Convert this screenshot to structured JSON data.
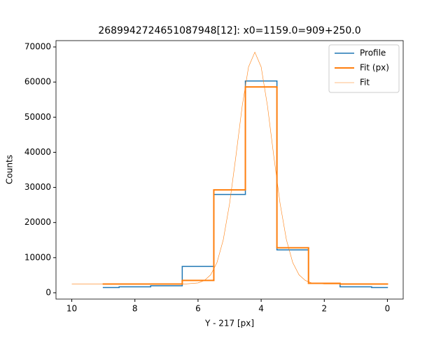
{
  "chart_data": {
    "type": "line",
    "title": "2689942724651087948[12]: x0=1159.0=909+250.0",
    "x_label": "Y - 217 [px]",
    "y_label": "Counts",
    "xlim": [
      10.5,
      -0.5
    ],
    "xticks": [
      10,
      8,
      6,
      4,
      2,
      0
    ],
    "ylim": [
      -1800,
      71800
    ],
    "yticks": [
      0,
      10000,
      20000,
      30000,
      40000,
      50000,
      60000,
      70000
    ],
    "legend": "upper right",
    "series": [
      {
        "name": "Profile",
        "color": "#1f77b4",
        "drawstyle": "steps-mid",
        "linewidth": 1.5,
        "x": [
          0,
          1,
          2,
          3,
          4,
          5,
          6,
          7,
          8,
          9
        ],
        "values": [
          1500,
          1700,
          2700,
          12200,
          60300,
          28000,
          7500,
          2000,
          1700,
          1500
        ]
      },
      {
        "name": "Fit (px)",
        "color": "#ff7f0e",
        "drawstyle": "steps-mid",
        "linewidth": 2,
        "x": [
          0,
          1,
          2,
          3,
          4,
          5,
          6,
          7,
          8,
          9
        ],
        "values": [
          2500,
          2500,
          2700,
          12800,
          58600,
          29300,
          3500,
          2500,
          2500,
          2500
        ]
      },
      {
        "name": "Fit",
        "color": "#ff7f0e",
        "drawstyle": "default",
        "linewidth": 0.6,
        "x": [
          0,
          1,
          2,
          2.4,
          2.6,
          2.8,
          3,
          3.2,
          3.4,
          3.6,
          3.8,
          4,
          4.2,
          4.4,
          4.6,
          4.8,
          5,
          5.2,
          5.4,
          5.6,
          5.8,
          6,
          6.4,
          7,
          8,
          10
        ],
        "values": [
          2500,
          2500,
          2500,
          2800,
          3500,
          5100,
          8600,
          15100,
          25400,
          38900,
          53200,
          64300,
          68500,
          64300,
          53200,
          38900,
          25400,
          15100,
          8600,
          5100,
          3500,
          2800,
          2500,
          2500,
          2500,
          2500
        ]
      }
    ]
  }
}
